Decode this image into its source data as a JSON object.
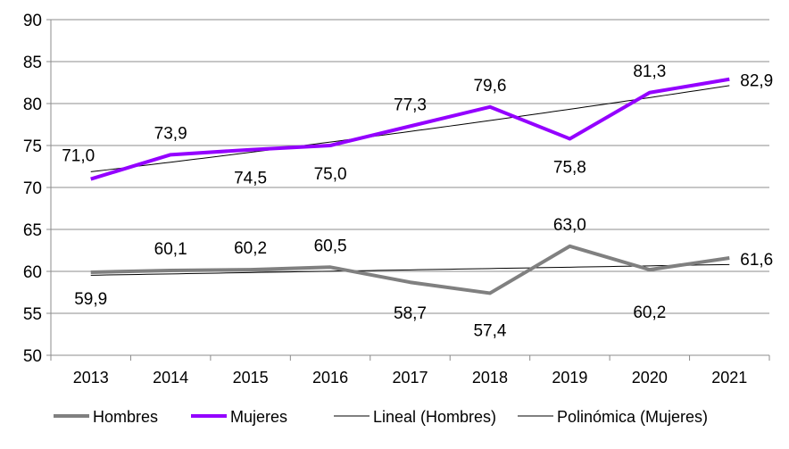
{
  "chart_data": {
    "type": "line",
    "title": "",
    "xlabel": "",
    "ylabel": "",
    "ylim": [
      50,
      90
    ],
    "yticks": [
      "50",
      "55",
      "60",
      "65",
      "70",
      "75",
      "80",
      "85",
      "90"
    ],
    "grid": true,
    "legend_position": "bottom",
    "categories": [
      "2013",
      "2014",
      "2015",
      "2016",
      "2017",
      "2018",
      "2019",
      "2020",
      "2021"
    ],
    "series": [
      {
        "name": "Hombres",
        "color": "#808080",
        "values": [
          59.9,
          60.1,
          60.2,
          60.5,
          58.7,
          57.4,
          63.0,
          60.2,
          61.6
        ],
        "labels": [
          "59,9",
          "60,1",
          "60,2",
          "60,5",
          "58,7",
          "57,4",
          "63,0",
          "60,2",
          "61,6"
        ]
      },
      {
        "name": "Mujeres",
        "color": "#9400FF",
        "values": [
          71.0,
          73.9,
          74.5,
          75.0,
          77.3,
          79.6,
          75.8,
          81.3,
          82.9
        ],
        "labels": [
          "71,0",
          "73,9",
          "74,5",
          "75,0",
          "77,3",
          "79,6",
          "75,8",
          "81,3",
          "82,9"
        ]
      }
    ],
    "trendlines": [
      {
        "name": "Lineal (Hombres)",
        "of": "Hombres",
        "kind": "linear",
        "color": "#000000"
      },
      {
        "name": "Polinómica (Mujeres)",
        "of": "Mujeres",
        "kind": "polynomial",
        "order": 2,
        "color": "#000000"
      }
    ]
  }
}
